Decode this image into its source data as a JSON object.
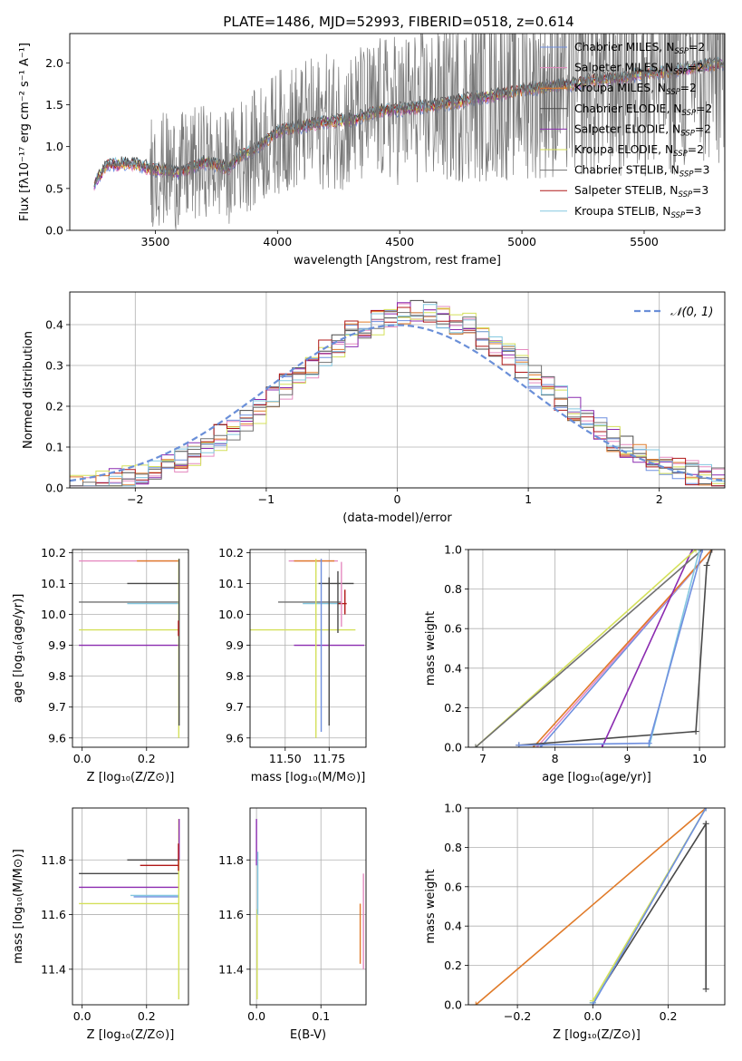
{
  "figure_title": "PLATE=1486, MJD=52993, FIBERID=0518, z=0.614",
  "colors": {
    "series": [
      "#6f8fdf",
      "#e58ac0",
      "#e07a28",
      "#484848",
      "#8b2bb0",
      "#d4e05a",
      "#707070",
      "#b01818",
      "#84c8e0"
    ]
  },
  "legend_labels": [
    {
      "base": "Chabrier MILES, N",
      "sub": "SSP",
      "tail": "=2"
    },
    {
      "base": "Salpeter MILES, N",
      "sub": "SSP",
      "tail": "=2"
    },
    {
      "base": "Kroupa MILES, N",
      "sub": "SSP",
      "tail": "=2"
    },
    {
      "base": "Chabrier ELODIE, N",
      "sub": "SSP",
      "tail": "=2"
    },
    {
      "base": "Salpeter ELODIE, N",
      "sub": "SSP",
      "tail": "=2"
    },
    {
      "base": "Kroupa ELODIE, N",
      "sub": "SSP",
      "tail": "=2"
    },
    {
      "base": "Chabrier STELIB, N",
      "sub": "SSP",
      "tail": "=3"
    },
    {
      "base": "Salpeter STELIB, N",
      "sub": "SSP",
      "tail": "=3"
    },
    {
      "base": "Kroupa STELIB, N",
      "sub": "SSP",
      "tail": "=3"
    }
  ],
  "chart_data": [
    {
      "id": "spectrum",
      "type": "line",
      "title": "PLATE=1486, MJD=52993, FIBERID=0518, z=0.614",
      "xlabel": "wavelength [Angstrom, rest frame]",
      "ylabel": "Flux [fλ10⁻¹⁷ erg cm⁻² s⁻¹ A⁻¹]",
      "xlim": [
        3150,
        5830
      ],
      "ylim": [
        0,
        2.35
      ],
      "xticks": [
        3500,
        4000,
        4500,
        5000,
        5500
      ],
      "xtick_labels": [
        "3500",
        "4000",
        "4500",
        "5000",
        "5500"
      ],
      "yticks": [
        0.0,
        0.5,
        1.0,
        1.5,
        2.0
      ],
      "ytick_labels": [
        "0.0",
        "0.5",
        "1.0",
        "1.5",
        "2.0"
      ],
      "grid": false,
      "legend_position": "top-right",
      "data_start": 3250,
      "data_end": 5830,
      "model_continuum": [
        {
          "x": 3250,
          "y": 0.55
        },
        {
          "x": 3300,
          "y": 0.78
        },
        {
          "x": 3400,
          "y": 0.8
        },
        {
          "x": 3500,
          "y": 0.73
        },
        {
          "x": 3600,
          "y": 0.7
        },
        {
          "x": 3700,
          "y": 0.82
        },
        {
          "x": 3800,
          "y": 0.75
        },
        {
          "x": 3850,
          "y": 0.9
        },
        {
          "x": 3900,
          "y": 0.95
        },
        {
          "x": 4000,
          "y": 1.18
        },
        {
          "x": 4100,
          "y": 1.25
        },
        {
          "x": 4200,
          "y": 1.3
        },
        {
          "x": 4300,
          "y": 1.32
        },
        {
          "x": 4400,
          "y": 1.42
        },
        {
          "x": 4500,
          "y": 1.45
        },
        {
          "x": 4600,
          "y": 1.48
        },
        {
          "x": 4700,
          "y": 1.52
        },
        {
          "x": 4800,
          "y": 1.58
        },
        {
          "x": 4900,
          "y": 1.62
        },
        {
          "x": 5000,
          "y": 1.68
        },
        {
          "x": 5100,
          "y": 1.72
        },
        {
          "x": 5200,
          "y": 1.75
        },
        {
          "x": 5300,
          "y": 1.8
        },
        {
          "x": 5400,
          "y": 1.82
        },
        {
          "x": 5500,
          "y": 1.88
        },
        {
          "x": 5600,
          "y": 1.9
        },
        {
          "x": 5700,
          "y": 1.95
        },
        {
          "x": 5830,
          "y": 2.0
        }
      ]
    },
    {
      "id": "residual_hist",
      "type": "line",
      "xlabel": "(data-model)/error",
      "ylabel": "Normed distribution",
      "xlim": [
        -2.5,
        2.5
      ],
      "ylim": [
        0,
        0.48
      ],
      "xticks": [
        -2,
        -1,
        0,
        1,
        2
      ],
      "xtick_labels": [
        "−2",
        "−1",
        "0",
        "1",
        "2"
      ],
      "yticks": [
        0.0,
        0.1,
        0.2,
        0.3,
        0.4
      ],
      "ytick_labels": [
        "0.0",
        "0.1",
        "0.2",
        "0.3",
        "0.4"
      ],
      "grid": true,
      "legend_position": "top-right",
      "gaussian_label": "𝒩(0, 1)",
      "bin_width": 0.1
    },
    {
      "id": "age_vs_Z",
      "type": "scatter",
      "xlabel": "Z [log₁₀(Z/Z⊙)]",
      "ylabel": "age  [log₁₀(age/yr)]",
      "xlim": [
        -0.03,
        0.33
      ],
      "ylim": [
        9.57,
        10.21
      ],
      "xticks": [
        0.0,
        0.2
      ],
      "xtick_labels": [
        "0.0",
        "0.2"
      ],
      "yticks": [
        9.6,
        9.7,
        9.8,
        9.9,
        10.0,
        10.1,
        10.2
      ],
      "ytick_labels": [
        "9.6",
        "9.7",
        "9.8",
        "9.9",
        "10.0",
        "10.1",
        "10.2"
      ],
      "grid": true,
      "hlines": [
        {
          "y": 10.173,
          "x0": -0.01,
          "x1": 0.3,
          "c": 1
        },
        {
          "y": 10.173,
          "x0": 0.17,
          "x1": 0.3,
          "c": 2
        },
        {
          "y": 10.1,
          "x0": 0.14,
          "x1": 0.3,
          "c": 3
        },
        {
          "y": 10.04,
          "x0": -0.01,
          "x1": 0.3,
          "c": 6
        },
        {
          "y": 10.035,
          "x0": 0.14,
          "x1": 0.3,
          "c": 8
        },
        {
          "y": 9.95,
          "x0": -0.01,
          "x1": 0.3,
          "c": 5
        },
        {
          "y": 9.9,
          "x0": -0.01,
          "x1": 0.3,
          "c": 4
        }
      ],
      "vlines": [
        {
          "x": 0.3,
          "y0": 9.6,
          "y1": 10.18,
          "c": 5
        },
        {
          "x": 0.301,
          "y0": 9.64,
          "y1": 10.18,
          "c": 3
        },
        {
          "x": 0.299,
          "y0": 9.93,
          "y1": 9.98,
          "c": 7
        }
      ]
    },
    {
      "id": "age_vs_mass",
      "type": "scatter",
      "xlabel": "mass [log₁₀(M/M⊙)]",
      "xlim": [
        11.3,
        11.96
      ],
      "ylim": [
        9.57,
        10.21
      ],
      "xticks": [
        11.5,
        11.75
      ],
      "xtick_labels": [
        "11.50",
        "11.75"
      ],
      "yticks": [
        9.6,
        9.7,
        9.8,
        9.9,
        10.0,
        10.1,
        10.2
      ],
      "ytick_labels": [
        "9.6",
        "9.7",
        "9.8",
        "9.9",
        "10.0",
        "10.1",
        "10.2"
      ],
      "grid": true,
      "hlines": [
        {
          "y": 10.173,
          "x0": 11.52,
          "x1": 11.8,
          "c": 1
        },
        {
          "y": 10.173,
          "x0": 11.55,
          "x1": 11.78,
          "c": 2
        },
        {
          "y": 10.1,
          "x0": 11.69,
          "x1": 11.89,
          "c": 3
        },
        {
          "y": 10.04,
          "x0": 11.46,
          "x1": 11.82,
          "c": 6
        },
        {
          "y": 10.035,
          "x0": 11.6,
          "x1": 11.82,
          "c": 8
        },
        {
          "y": 10.035,
          "x0": 11.8,
          "x1": 11.85,
          "c": 7
        },
        {
          "y": 9.95,
          "x0": 11.29,
          "x1": 11.9,
          "c": 5
        },
        {
          "y": 9.9,
          "x0": 11.55,
          "x1": 11.95,
          "c": 4
        }
      ],
      "vlines": [
        {
          "x": 11.675,
          "y0": 9.6,
          "y1": 10.18,
          "c": 5
        },
        {
          "x": 11.705,
          "y0": 9.62,
          "y1": 10.18,
          "c": 0
        },
        {
          "x": 11.75,
          "y0": 9.64,
          "y1": 10.12,
          "c": 3
        },
        {
          "x": 11.82,
          "y0": 9.96,
          "y1": 10.17,
          "c": 1
        },
        {
          "x": 11.8,
          "y0": 9.94,
          "y1": 10.14,
          "c": 3
        },
        {
          "x": 11.84,
          "y0": 10.0,
          "y1": 10.08,
          "c": 7
        }
      ]
    },
    {
      "id": "mass_weight_vs_age",
      "type": "line",
      "xlabel": "age  [log₁₀(age/yr)]",
      "ylabel": "mass weight",
      "xlim": [
        6.8,
        10.35
      ],
      "ylim": [
        0,
        1
      ],
      "xticks": [
        7,
        8,
        9,
        10
      ],
      "xtick_labels": [
        "7",
        "8",
        "9",
        "10"
      ],
      "yticks": [
        0.0,
        0.2,
        0.4,
        0.6,
        0.8,
        1.0
      ],
      "ytick_labels": [
        "0.0",
        "0.2",
        "0.4",
        "0.6",
        "0.8",
        "1.0"
      ],
      "grid": true,
      "series": [
        {
          "c": 0,
          "points": [
            [
              7.8,
              0
            ],
            [
              10.17,
              1
            ]
          ]
        },
        {
          "c": 1,
          "points": [
            [
              7.75,
              0
            ],
            [
              10.17,
              1
            ]
          ]
        },
        {
          "c": 2,
          "points": [
            [
              7.7,
              0
            ],
            [
              10.17,
              1
            ]
          ]
        },
        {
          "c": 3,
          "points": [
            [
              7.5,
              0.01
            ],
            [
              9.95,
              0.08
            ],
            [
              10.1,
              0.92
            ],
            [
              10.17,
              1
            ]
          ]
        },
        {
          "c": 4,
          "points": [
            [
              8.65,
              0
            ],
            [
              9.9,
              1
            ]
          ]
        },
        {
          "c": 5,
          "points": [
            [
              6.9,
              0
            ],
            [
              9.95,
              1
            ]
          ]
        },
        {
          "c": 6,
          "points": [
            [
              6.9,
              0
            ],
            [
              10.04,
              1
            ]
          ]
        },
        {
          "c": 8,
          "points": [
            [
              9.3,
              0
            ],
            [
              10.0,
              1
            ]
          ]
        },
        {
          "c": 0,
          "points": [
            [
              7.5,
              0.01
            ],
            [
              9.3,
              0.02
            ],
            [
              10.04,
              1
            ]
          ]
        }
      ]
    },
    {
      "id": "mass_vs_Z",
      "type": "scatter",
      "xlabel": "Z [log₁₀(Z/Z⊙)]",
      "ylabel": "mass [log₁₀(M/M⊙)]",
      "xlim": [
        -0.03,
        0.33
      ],
      "ylim": [
        11.27,
        11.99
      ],
      "xticks": [
        0.0,
        0.2
      ],
      "xtick_labels": [
        "0.0",
        "0.2"
      ],
      "yticks": [
        11.4,
        11.6,
        11.8
      ],
      "ytick_labels": [
        "11.4",
        "11.6",
        "11.8"
      ],
      "grid": true,
      "hlines": [
        {
          "y": 11.8,
          "x0": 0.14,
          "x1": 0.3,
          "c": 3
        },
        {
          "y": 11.78,
          "x0": 0.18,
          "x1": 0.3,
          "c": 7
        },
        {
          "y": 11.75,
          "x0": -0.01,
          "x1": 0.3,
          "c": 3
        },
        {
          "y": 11.7,
          "x0": -0.01,
          "x1": 0.3,
          "c": 4
        },
        {
          "y": 11.67,
          "x0": 0.15,
          "x1": 0.3,
          "c": 8
        },
        {
          "y": 11.665,
          "x0": 0.16,
          "x1": 0.3,
          "c": 0
        },
        {
          "y": 11.64,
          "x0": -0.01,
          "x1": 0.3,
          "c": 5
        }
      ],
      "vlines": [
        {
          "x": 0.3,
          "y0": 11.29,
          "y1": 11.95,
          "c": 5
        },
        {
          "x": 0.301,
          "y0": 11.8,
          "y1": 11.95,
          "c": 4
        },
        {
          "x": 0.299,
          "y0": 11.76,
          "y1": 11.86,
          "c": 7
        }
      ]
    },
    {
      "id": "mass_vs_ebv",
      "type": "scatter",
      "xlabel": "E(B-V)",
      "xlim": [
        -0.01,
        0.17
      ],
      "ylim": [
        11.27,
        11.99
      ],
      "xticks": [
        0.0,
        0.1
      ],
      "xtick_labels": [
        "0.0",
        "0.1"
      ],
      "yticks": [
        11.4,
        11.6,
        11.8
      ],
      "ytick_labels": [
        "11.4",
        "11.6",
        "11.8"
      ],
      "grid": true,
      "vlines": [
        {
          "x": 0.0,
          "y0": 11.78,
          "y1": 11.95,
          "c": 4
        },
        {
          "x": 0.001,
          "y0": 11.29,
          "y1": 11.62,
          "c": 5
        },
        {
          "x": 0.002,
          "y0": 11.6,
          "y1": 11.83,
          "c": 8
        },
        {
          "x": 0.161,
          "y0": 11.42,
          "y1": 11.64,
          "c": 2
        },
        {
          "x": 0.166,
          "y0": 11.4,
          "y1": 11.75,
          "c": 1
        }
      ]
    },
    {
      "id": "mass_weight_vs_Z",
      "type": "line",
      "xlabel": "Z [log₁₀(Z/Z⊙)]",
      "ylabel": "mass weight",
      "xlim": [
        -0.33,
        0.35
      ],
      "ylim": [
        0,
        1
      ],
      "xticks": [
        -0.2,
        0.0,
        0.2
      ],
      "xtick_labels": [
        "−0.2",
        "0.0",
        "0.2"
      ],
      "yticks": [
        0.0,
        0.2,
        0.4,
        0.6,
        0.8,
        1.0
      ],
      "ytick_labels": [
        "0.0",
        "0.2",
        "0.4",
        "0.6",
        "0.8",
        "1.0"
      ],
      "grid": true,
      "series": [
        {
          "c": 2,
          "points": [
            [
              -0.31,
              0
            ],
            [
              0.3,
              1
            ]
          ]
        },
        {
          "c": 3,
          "points": [
            [
              0.0,
              0.01
            ],
            [
              0.3,
              0.92
            ],
            [
              0.3,
              0.08
            ]
          ]
        },
        {
          "c": 8,
          "points": [
            [
              0.0,
              0.01
            ],
            [
              0.3,
              1
            ]
          ]
        },
        {
          "c": 5,
          "points": [
            [
              0.0,
              0.02
            ],
            [
              0.3,
              1
            ]
          ]
        },
        {
          "c": 0,
          "points": [
            [
              0.0,
              0.0
            ],
            [
              0.3,
              1
            ]
          ]
        }
      ]
    }
  ]
}
